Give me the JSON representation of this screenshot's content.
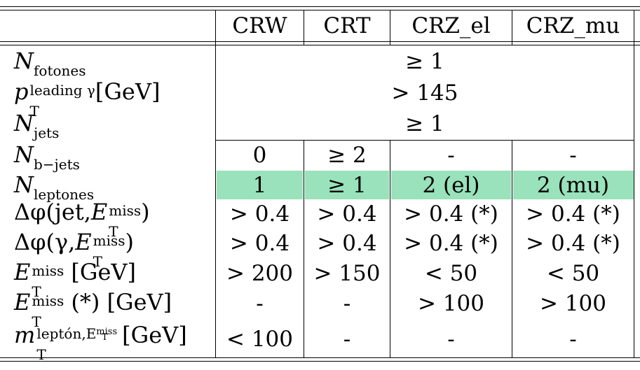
{
  "header": {
    "columns": [
      "CRW",
      "CRT",
      "CRZ_el",
      "CRZ_mu"
    ]
  },
  "rows": [
    {
      "label_sym": "N",
      "label_sub": "fotones",
      "span_value": "≥ 1"
    },
    {
      "label_sym": "p",
      "label_sup": "leading γ",
      "label_sub": "T",
      "label_unit": "[GeV]",
      "span_value": "> 145"
    },
    {
      "label_sym": "N",
      "label_sub": "jets",
      "span_value": "≥ 1"
    },
    {
      "label_sym": "N",
      "label_sub": "b−jets",
      "values": [
        "0",
        "≥ 2",
        "-",
        "-"
      ]
    },
    {
      "label_sym": "N",
      "label_sub": "leptones",
      "values": [
        "1",
        "≥ 1",
        "2 (el)",
        "2 (mu)"
      ],
      "highlight": "#99e2bb"
    },
    {
      "label_pre": "Δφ(jet, ",
      "label_sym": "E",
      "label_sup": "miss",
      "label_sub": "T",
      "label_post": ")",
      "values": [
        "> 0.4",
        "> 0.4",
        "> 0.4 (*)",
        "> 0.4 (*)"
      ]
    },
    {
      "label_pre": "Δφ(γ, ",
      "label_sym": "E",
      "label_sup": "miss",
      "label_sub": "T",
      "label_post": ")",
      "values": [
        "> 0.4",
        "> 0.4",
        "> 0.4 (*)",
        "> 0.4 (*)"
      ]
    },
    {
      "label_sym": "E",
      "label_sup": "miss",
      "label_sub": "T",
      "label_unit": " [GeV]",
      "values": [
        "> 200",
        "> 150",
        "< 50",
        "< 50"
      ]
    },
    {
      "label_sym": "E",
      "label_sup": "miss",
      "label_sub": "T",
      "label_unit": " (*) [GeV]",
      "values": [
        "-",
        "-",
        "> 100",
        "> 100"
      ]
    },
    {
      "label_sym": "m",
      "label_sup": "leptón,E",
      "label_sup2": "miss",
      "label_sup2sub": "T",
      "label_sub": "T",
      "label_unit": "  [GeV]",
      "values": [
        "< 100",
        "-",
        "-",
        "-"
      ]
    }
  ]
}
